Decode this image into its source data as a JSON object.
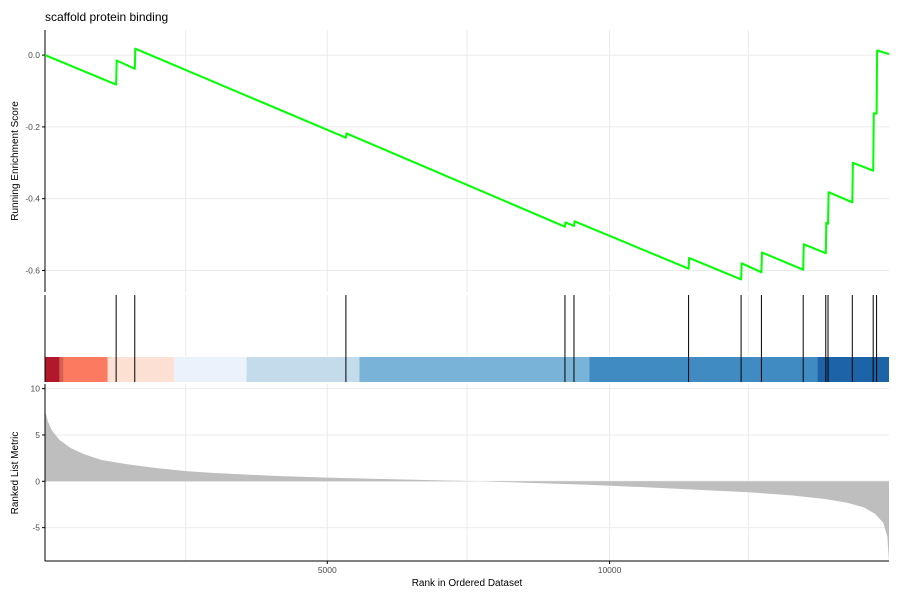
{
  "chart_data": {
    "type": "line",
    "title": "scaffold protein binding",
    "xlabel": "Rank in Ordered Dataset",
    "xlim": [
      0,
      14950
    ],
    "x_ticks": [
      5000,
      10000
    ],
    "x_tick_labels": [
      "5000",
      "10000"
    ],
    "panels": {
      "running_score": {
        "ylabel": "Running Enrichment Score",
        "ylim": [
          -0.66,
          0.07
        ],
        "y_ticks": [
          0.0,
          -0.2,
          -0.4,
          -0.6
        ],
        "y_tick_labels": [
          "0.0",
          "-0.2",
          "-0.4",
          "-0.6"
        ],
        "color": "#00ff00",
        "points": [
          [
            0,
            0.0
          ],
          [
            1260,
            -0.082
          ],
          [
            1270,
            -0.015
          ],
          [
            1590,
            -0.038
          ],
          [
            1600,
            0.018
          ],
          [
            5330,
            -0.23
          ],
          [
            5340,
            -0.218
          ],
          [
            9210,
            -0.478
          ],
          [
            9220,
            -0.466
          ],
          [
            9370,
            -0.476
          ],
          [
            9380,
            -0.463
          ],
          [
            11400,
            -0.595
          ],
          [
            11410,
            -0.565
          ],
          [
            12330,
            -0.625
          ],
          [
            12340,
            -0.58
          ],
          [
            12690,
            -0.605
          ],
          [
            12700,
            -0.55
          ],
          [
            13430,
            -0.598
          ],
          [
            13440,
            -0.527
          ],
          [
            13830,
            -0.552
          ],
          [
            13840,
            -0.467
          ],
          [
            13870,
            -0.47
          ],
          [
            13880,
            -0.382
          ],
          [
            14300,
            -0.41
          ],
          [
            14310,
            -0.3
          ],
          [
            14670,
            -0.322
          ],
          [
            14680,
            -0.162
          ],
          [
            14730,
            -0.163
          ],
          [
            14740,
            0.013
          ],
          [
            14950,
            0.003
          ]
        ]
      },
      "hits": {
        "color": "#000000",
        "positions": [
          1260,
          1590,
          5330,
          9210,
          9370,
          11400,
          12330,
          12690,
          13430,
          13830,
          13870,
          14300,
          14670,
          14730
        ]
      },
      "color_bar": {
        "segments": [
          {
            "from": 0,
            "to": 260,
            "color": "#b2182b"
          },
          {
            "from": 260,
            "to": 330,
            "color": "#d6604d"
          },
          {
            "from": 330,
            "to": 1110,
            "color": "#fc7b60"
          },
          {
            "from": 1110,
            "to": 2290,
            "color": "#fde0d4"
          },
          {
            "from": 2290,
            "to": 3570,
            "color": "#ecf2fb"
          },
          {
            "from": 3570,
            "to": 5570,
            "color": "#c3dbea"
          },
          {
            "from": 5570,
            "to": 9640,
            "color": "#79b4d8"
          },
          {
            "from": 9640,
            "to": 13680,
            "color": "#418bc3"
          },
          {
            "from": 13680,
            "to": 14950,
            "color": "#1c63a8"
          }
        ]
      },
      "ranked_metric": {
        "ylabel": "Ranked List Metric",
        "ylim": [
          -8.6,
          10.5
        ],
        "y_ticks": [
          10,
          5,
          0,
          -5
        ],
        "y_tick_labels": [
          "10",
          "5",
          "0",
          "-5"
        ],
        "fill": "#bebebe",
        "profile": [
          [
            0,
            7.6
          ],
          [
            50,
            6.5
          ],
          [
            120,
            5.5
          ],
          [
            250,
            4.5
          ],
          [
            450,
            3.6
          ],
          [
            700,
            2.9
          ],
          [
            1000,
            2.3
          ],
          [
            1500,
            1.8
          ],
          [
            2000,
            1.4
          ],
          [
            2500,
            1.1
          ],
          [
            3000,
            0.9
          ],
          [
            4000,
            0.6
          ],
          [
            5000,
            0.4
          ],
          [
            6000,
            0.25
          ],
          [
            7000,
            0.1
          ],
          [
            7700,
            0.0
          ],
          [
            8500,
            -0.15
          ],
          [
            9500,
            -0.35
          ],
          [
            10500,
            -0.6
          ],
          [
            11500,
            -0.9
          ],
          [
            12500,
            -1.2
          ],
          [
            13200,
            -1.5
          ],
          [
            13800,
            -1.9
          ],
          [
            14200,
            -2.3
          ],
          [
            14500,
            -2.8
          ],
          [
            14700,
            -3.5
          ],
          [
            14850,
            -4.5
          ],
          [
            14920,
            -6.0
          ],
          [
            14950,
            -8.6
          ]
        ]
      }
    }
  }
}
